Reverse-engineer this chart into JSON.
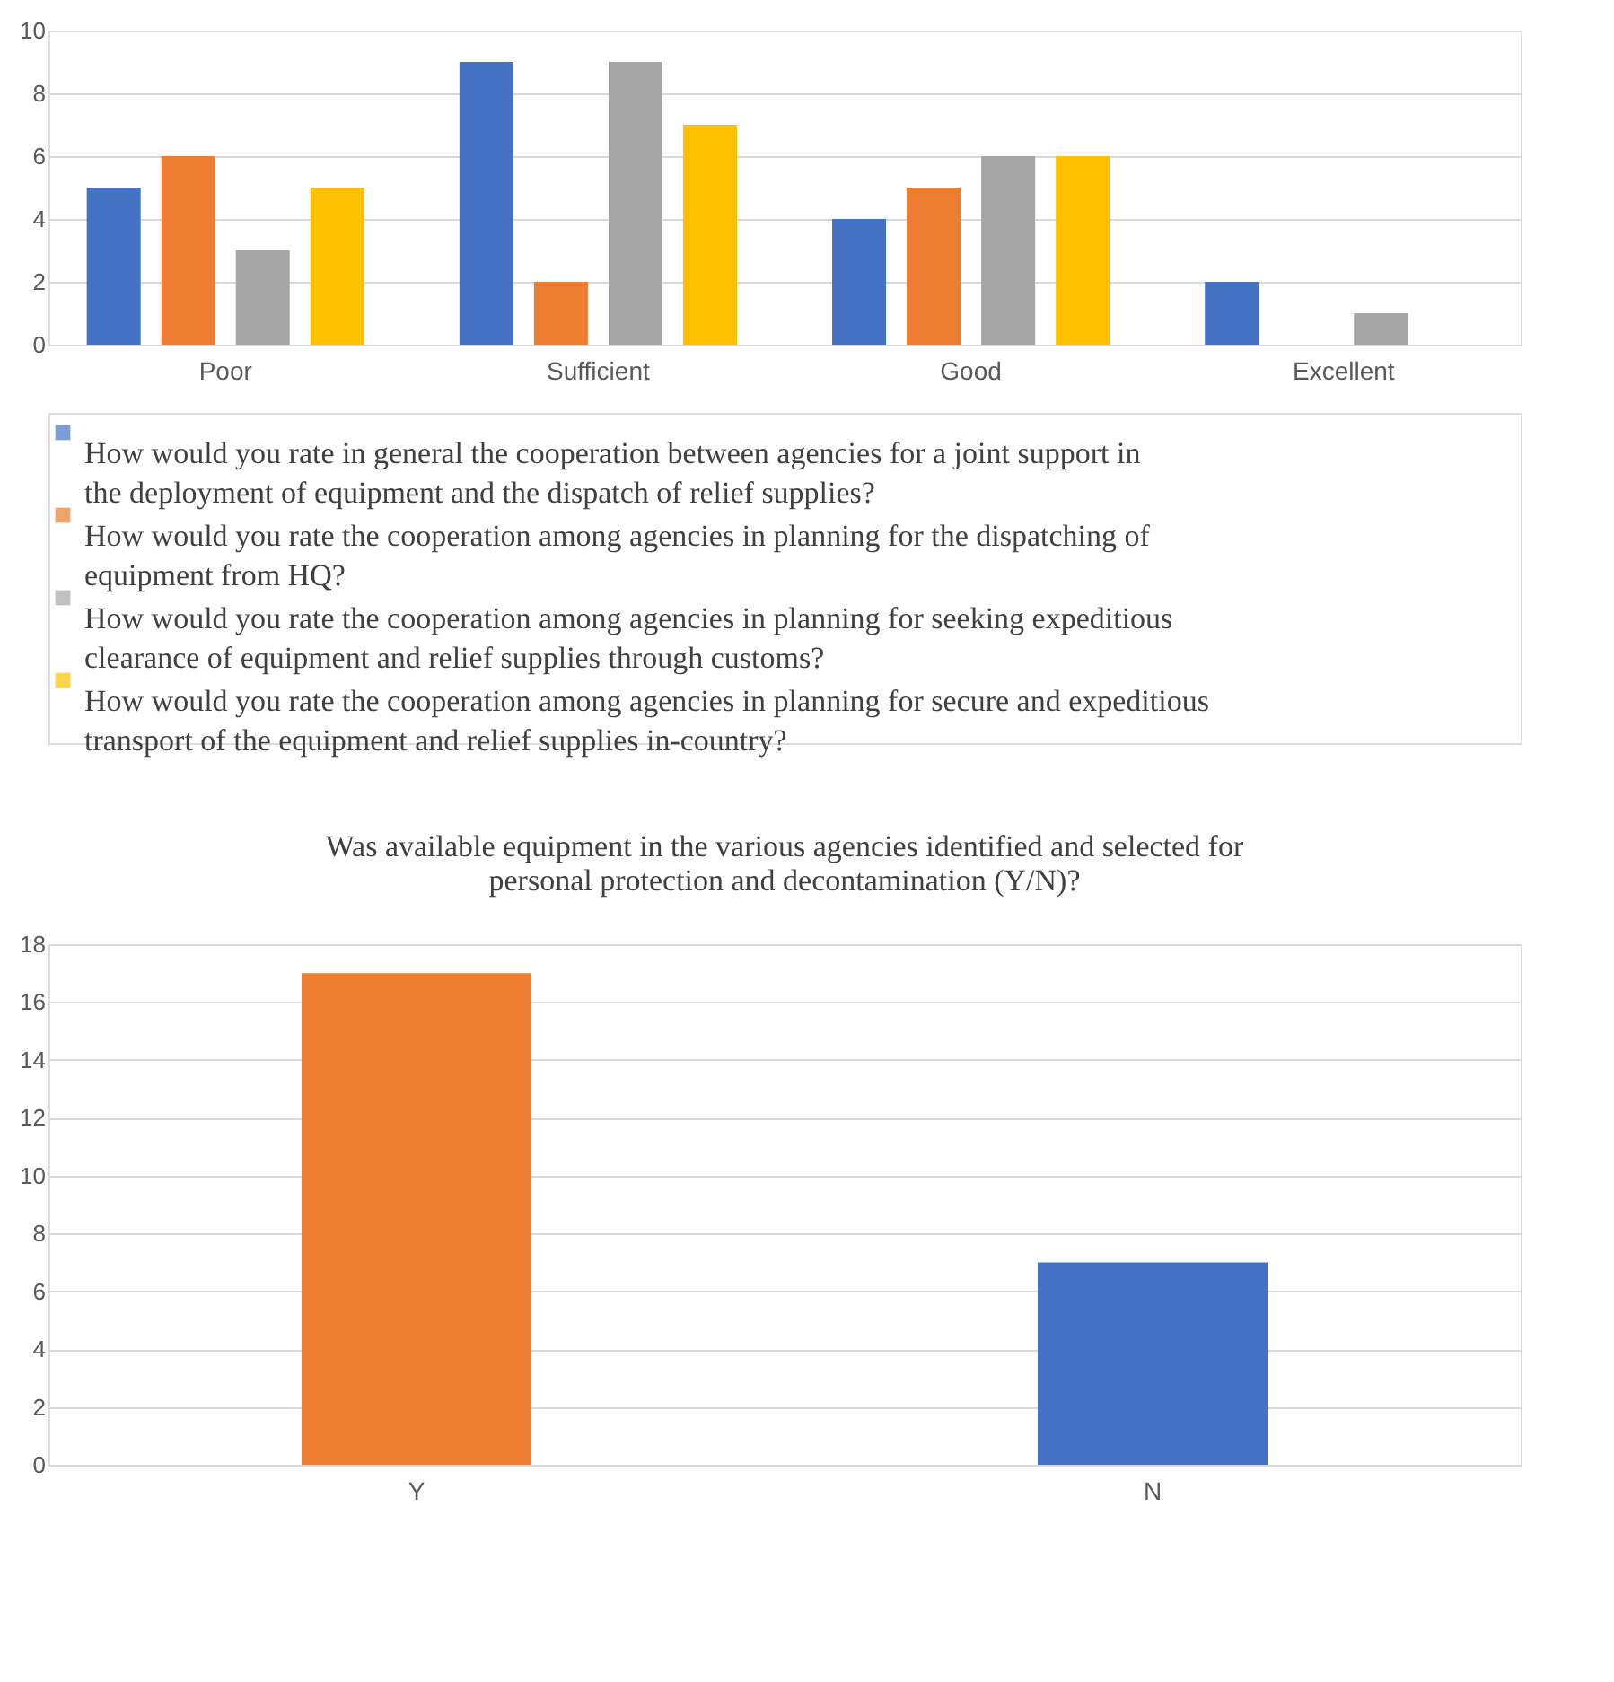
{
  "chart_data": [
    {
      "type": "bar",
      "categories": [
        "Poor",
        "Sufficient",
        "Good",
        "Excellent"
      ],
      "series": [
        {
          "name": "How would you rate in general the cooperation between agencies for a joint support in the  deployment of equipment and the dispatch of relief supplies?",
          "color": "#4472c4",
          "values": [
            5,
            9,
            4,
            2
          ]
        },
        {
          "name": "How would you rate the cooperation among agencies in planning for the dispatching of equipment from HQ?",
          "color": "#ed7d31",
          "values": [
            6,
            2,
            5,
            0
          ]
        },
        {
          "name": "How would you rate the cooperation among agencies in planning for seeking expeditious clearance of equipment and relief supplies through customs?",
          "color": "#a5a5a5",
          "values": [
            3,
            9,
            6,
            1
          ]
        },
        {
          "name": "How would you rate the cooperation among agencies in planning for secure and expeditious transport of the equipment and relief supplies in-country?",
          "color": "#ffc000",
          "values": [
            5,
            7,
            6,
            0
          ]
        }
      ],
      "ylim": [
        0,
        10
      ],
      "yticks": [
        0,
        2,
        4,
        6,
        8,
        10
      ],
      "grid": "y",
      "legend": "bottom"
    },
    {
      "type": "bar",
      "title": "Was available  equipment in the various agencies identified  and selected for personal protection and decontamination (Y/N)?",
      "categories": [
        "Y",
        "N"
      ],
      "values": [
        17,
        7
      ],
      "colors": [
        "#ed7d31",
        "#4472c4"
      ],
      "ylim": [
        0,
        18
      ],
      "yticks": [
        0,
        2,
        4,
        6,
        8,
        10,
        12,
        14,
        16,
        18
      ],
      "grid": "y"
    }
  ]
}
